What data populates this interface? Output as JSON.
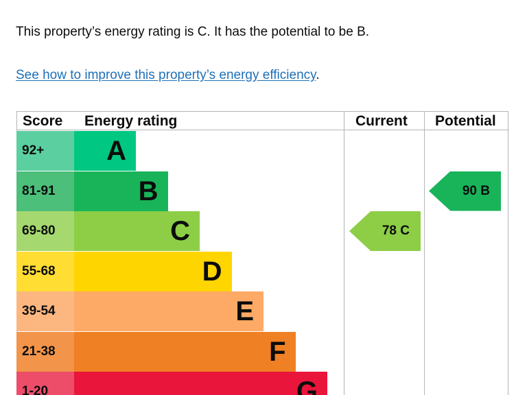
{
  "summary": "This property’s energy rating is C. It has the potential to be B.",
  "link": {
    "text": "See how to improve this property’s energy efficiency",
    "suffix": "."
  },
  "chart_data": {
    "type": "bar",
    "title": "",
    "headers": {
      "score": "Score",
      "rating": "Energy rating",
      "current": "Current",
      "potential": "Potential"
    },
    "bands": [
      {
        "letter": "A",
        "range": "92+",
        "color": "#00c781",
        "score_color": "#5ccfa0"
      },
      {
        "letter": "B",
        "range": "81-91",
        "color": "#19b459",
        "score_color": "#4cbf7a"
      },
      {
        "letter": "C",
        "range": "69-80",
        "color": "#8dce46",
        "score_color": "#a5d86e"
      },
      {
        "letter": "D",
        "range": "55-68",
        "color": "#ffd500",
        "score_color": "#ffdd33"
      },
      {
        "letter": "E",
        "range": "39-54",
        "color": "#fcaa65",
        "score_color": "#fcb680"
      },
      {
        "letter": "F",
        "range": "21-38",
        "color": "#ef8023",
        "score_color": "#f2944a"
      },
      {
        "letter": "G",
        "range": "1-20",
        "color": "#e9153b",
        "score_color": "#ed4d69"
      }
    ],
    "current": {
      "value": 78,
      "letter": "C",
      "color": "#8dce46"
    },
    "potential": {
      "value": 90,
      "letter": "B",
      "color": "#19b459"
    }
  }
}
